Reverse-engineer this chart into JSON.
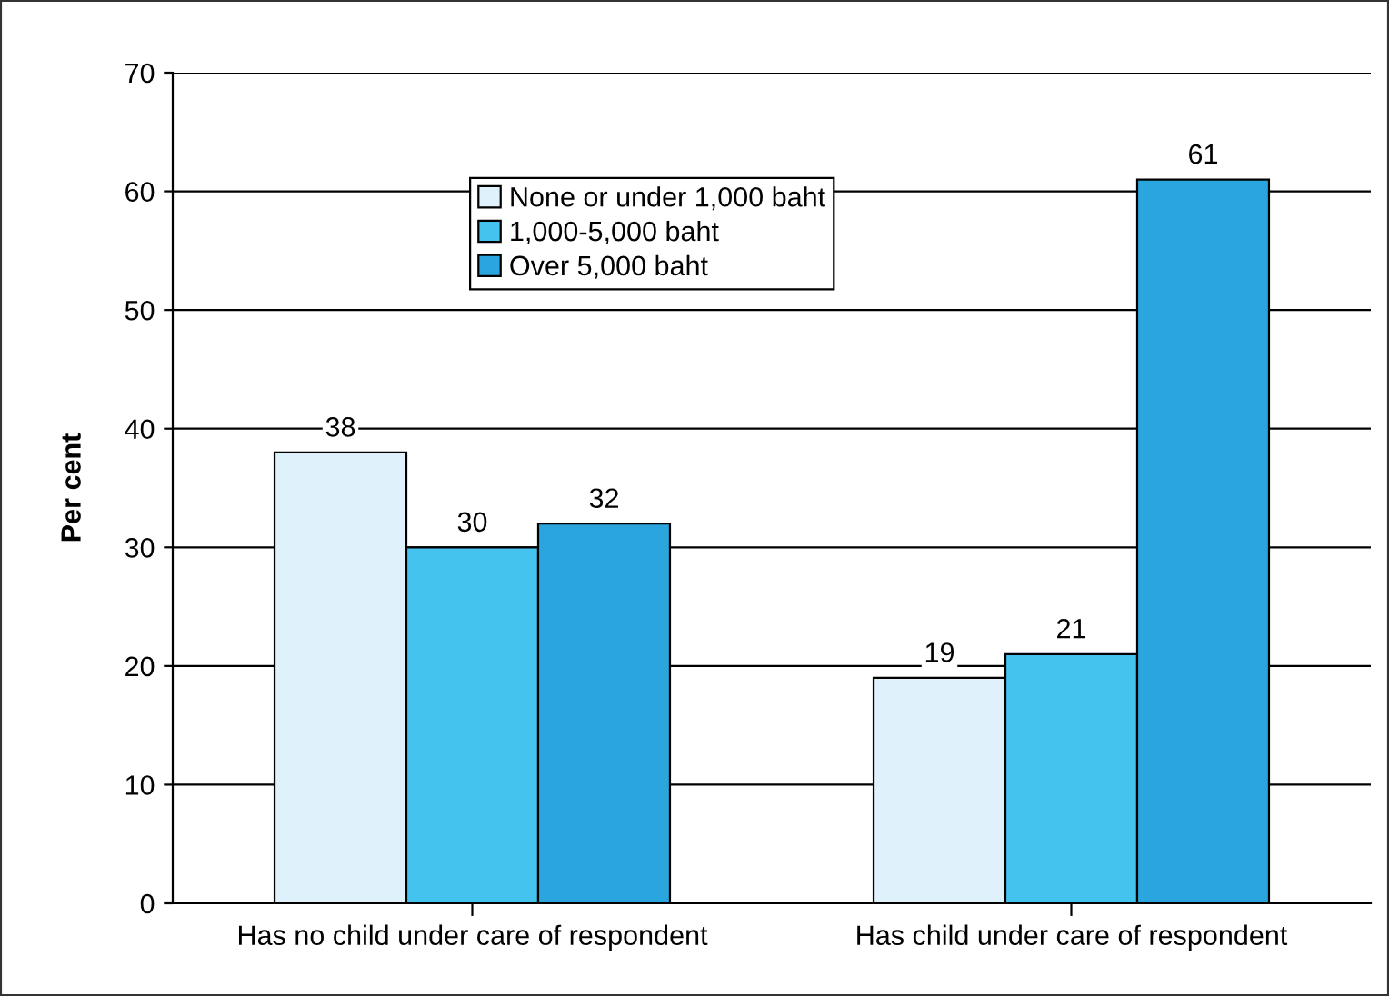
{
  "chart_data": {
    "type": "bar",
    "ylabel": "Per cent",
    "categories": [
      "Has no child under care of respondent",
      "Has child under care of respondent"
    ],
    "series": [
      {
        "name": "None or under 1,000 baht",
        "color": "#dff2fc",
        "values": [
          38,
          19
        ]
      },
      {
        "name": "1,000-5,000 baht",
        "color": "#45c3ef",
        "values": [
          30,
          21
        ]
      },
      {
        "name": "Over 5,000 baht",
        "color": "#2aa5dd",
        "values": [
          32,
          61
        ]
      }
    ],
    "ylim": [
      0,
      70
    ],
    "yticks": [
      0,
      10,
      20,
      30,
      40,
      50,
      60,
      70
    ],
    "grid": "y",
    "legend": "top",
    "data_labels": true
  }
}
